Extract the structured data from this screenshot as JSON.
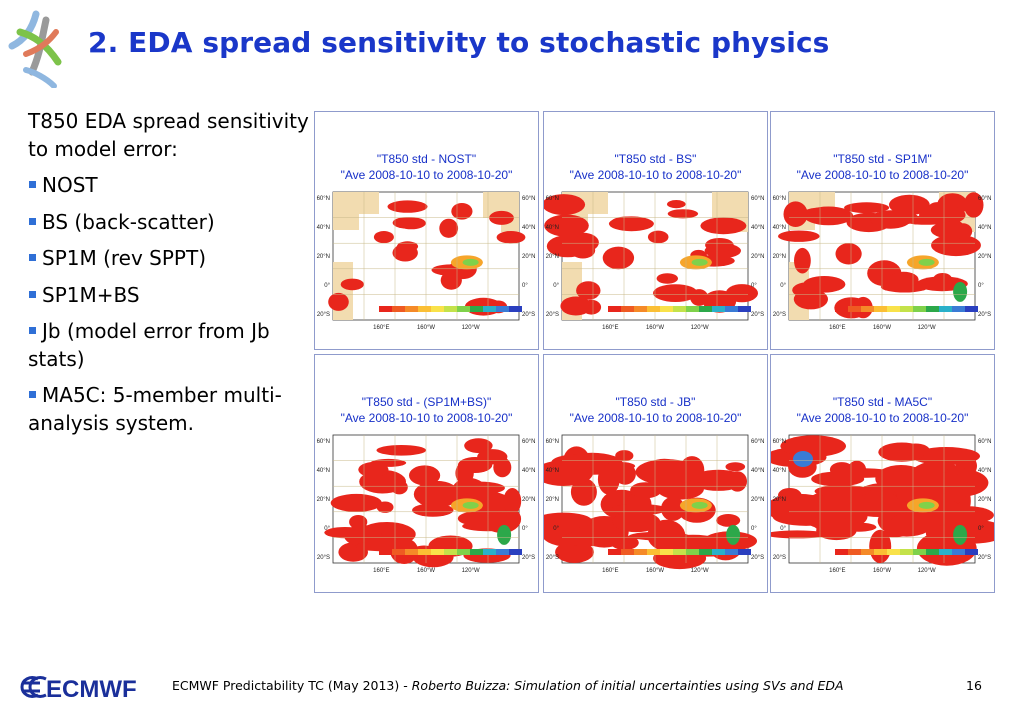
{
  "slide": {
    "title": "2. EDA spread sensitivity to stochastic physics",
    "intro": "T850 EDA spread sensitivity to model error:",
    "bullets": [
      "NOST",
      "BS (back-scatter)",
      "SP1M (rev SPPT)",
      "SP1M+BS",
      "Jb (model error from Jb stats)",
      "MA5C: 5-member multi-analysis system."
    ]
  },
  "panels": [
    {
      "title": "\"T850 std - NOST\"",
      "subtitle": "\"Ave 2008-10-10 to 2008-10-20\""
    },
    {
      "title": "\"T850 std - BS\"",
      "subtitle": "\"Ave 2008-10-10 to 2008-10-20\""
    },
    {
      "title": "\"T850 std - SP1M\"",
      "subtitle": "\"Ave 2008-10-10 to 2008-10-20\""
    },
    {
      "title": "\"T850 std - (SP1M+BS)\"",
      "subtitle": "\"Ave 2008-10-10 to 2008-10-20\""
    },
    {
      "title": "\"T850 std - JB\"",
      "subtitle": "\"Ave 2008-10-10 to 2008-10-20\""
    },
    {
      "title": "\"T850 std - MA5C\"",
      "subtitle": "\"Ave 2008-10-10 to 2008-10-20\""
    }
  ],
  "map_axes": {
    "lat_labels": [
      "60°N",
      "40°N",
      "20°N",
      "0°",
      "20°S"
    ],
    "lon_labels": [
      "160°E",
      "160°W",
      "120°W"
    ]
  },
  "footer": {
    "left": "ECMWF Predictability TC (May 2013) -",
    "italic": "Roberto Buizza: Simulation of initial uncertainties using SVs and EDA",
    "page": "16",
    "logo_text": "ECMWF"
  },
  "colors": {
    "title": "#1a37c9",
    "bullet": "#2f6fd6",
    "panel_title": "#1730c8",
    "spread_red": "#e8261c",
    "land": "#f2dcb0"
  }
}
